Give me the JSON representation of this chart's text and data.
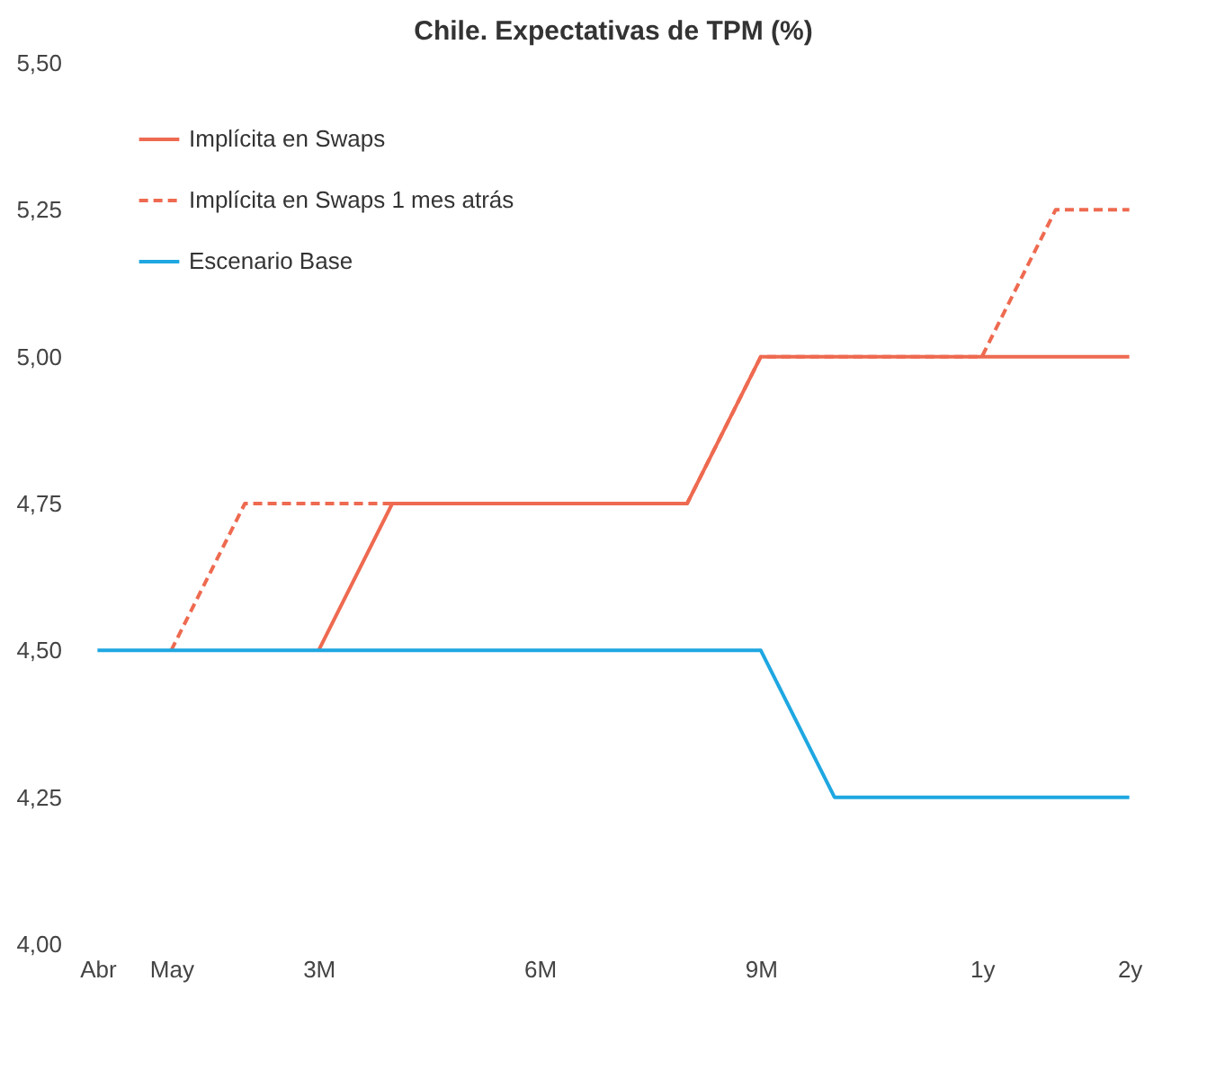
{
  "chart_data": {
    "type": "line",
    "title": "Chile. Expectativas de TPM (%)",
    "categories": [
      "Abr",
      "May",
      null,
      "3M",
      null,
      null,
      "6M",
      null,
      null,
      "9M",
      null,
      null,
      "1y",
      null,
      "2y"
    ],
    "series": [
      {
        "name": "Implícita en Swaps",
        "color": "#ee6a50",
        "line_style": "solid",
        "values": [
          null,
          null,
          null,
          4.5,
          4.75,
          4.75,
          4.75,
          4.75,
          4.75,
          5.0,
          5.0,
          5.0,
          5.0,
          5.0,
          5.0
        ]
      },
      {
        "name": "Implícita en Swaps 1 mes atrás",
        "color": "#ee6a50",
        "line_style": "dashed",
        "values": [
          null,
          4.5,
          4.75,
          4.75,
          4.75,
          4.75,
          4.75,
          4.75,
          4.75,
          5.0,
          5.0,
          5.0,
          5.0,
          5.25,
          5.25
        ]
      },
      {
        "name": "Escenario Base",
        "color": "#1ea7e1",
        "line_style": "solid",
        "values": [
          4.5,
          4.5,
          4.5,
          4.5,
          4.5,
          4.5,
          4.5,
          4.5,
          4.5,
          4.5,
          4.25,
          4.25,
          4.25,
          4.25,
          4.25
        ]
      }
    ],
    "ylim": [
      4.0,
      5.5
    ],
    "yticks": [
      {
        "value": 4.0,
        "label": "4,00"
      },
      {
        "value": 4.25,
        "label": "4,25"
      },
      {
        "value": 4.5,
        "label": "4,50"
      },
      {
        "value": 4.75,
        "label": "4,75"
      },
      {
        "value": 5.0,
        "label": "5,00"
      },
      {
        "value": 5.25,
        "label": "5,25"
      },
      {
        "value": 5.5,
        "label": "5,50"
      }
    ],
    "grid": false,
    "legend": "top left",
    "marker": "none"
  }
}
